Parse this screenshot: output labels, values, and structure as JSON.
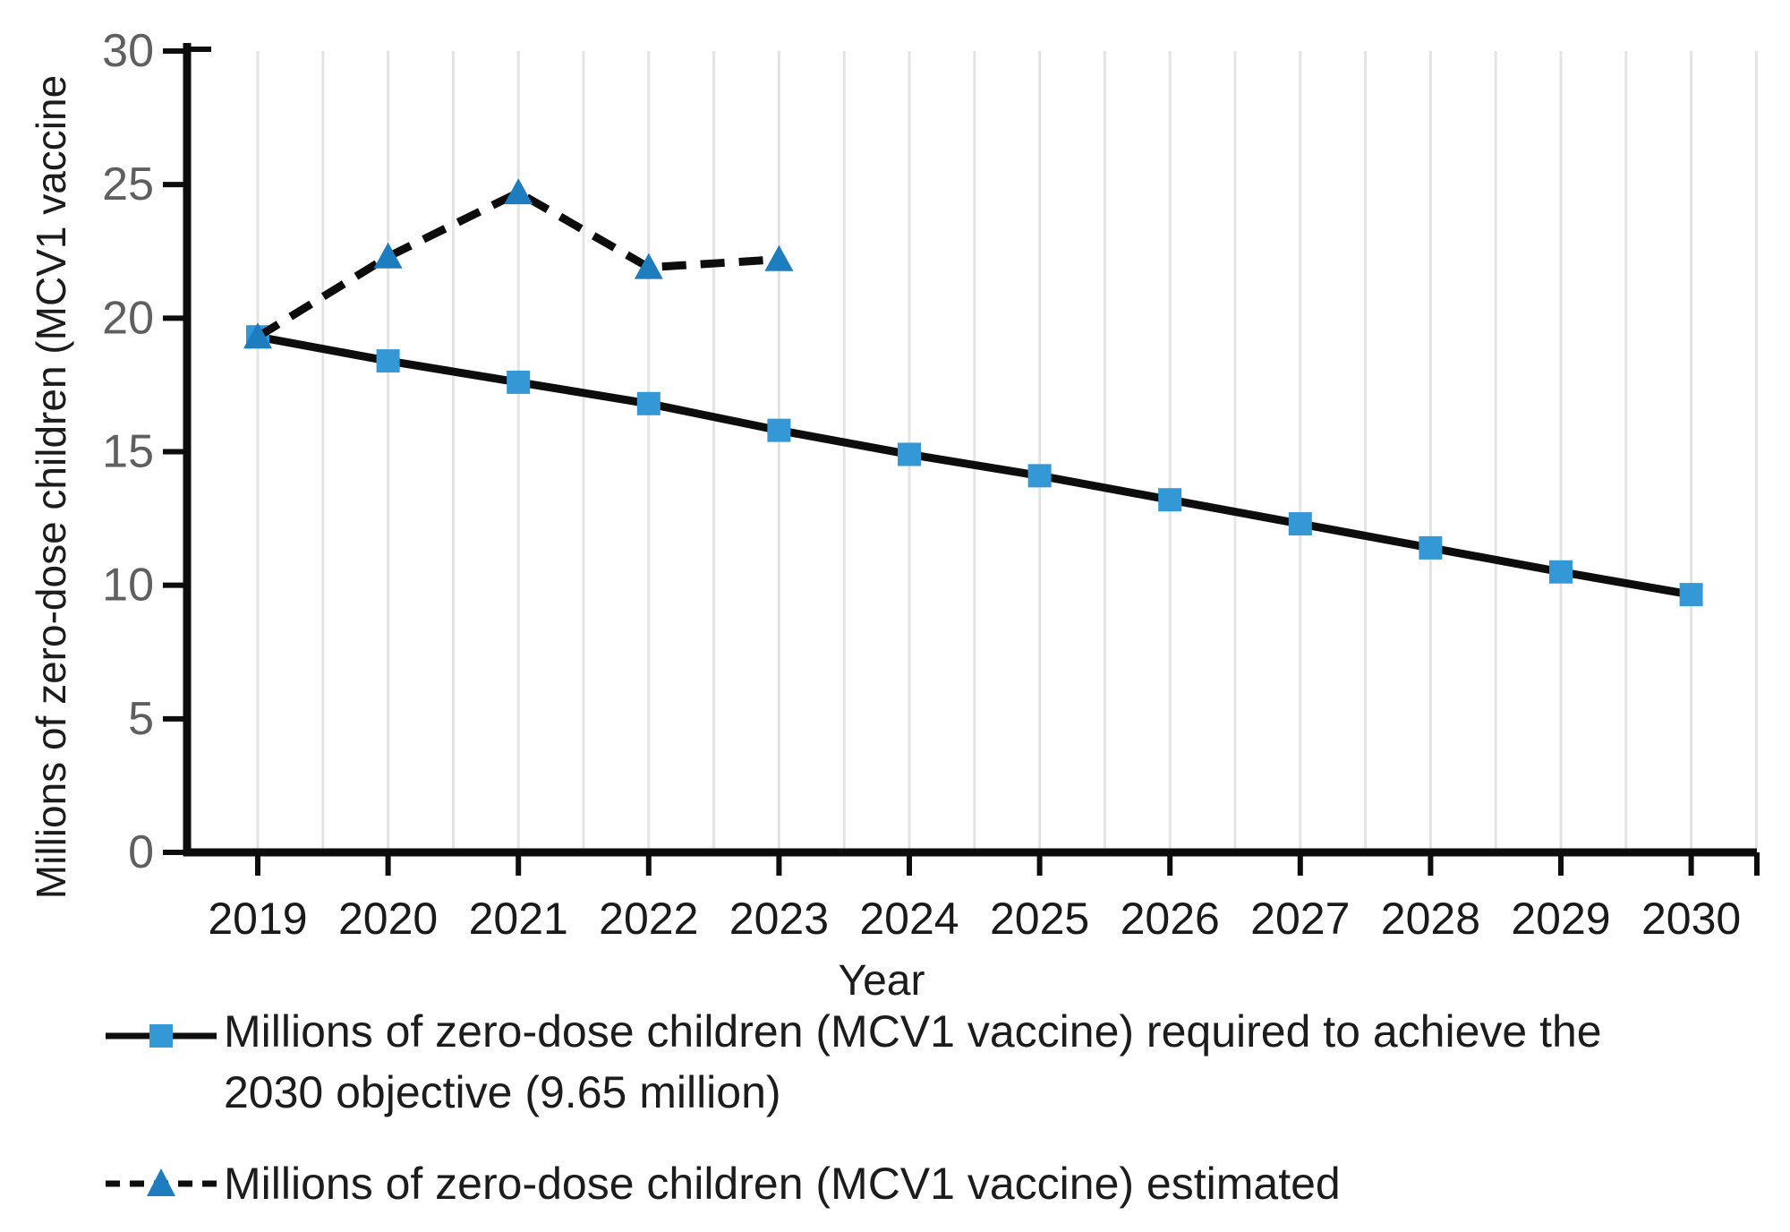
{
  "chart_data": {
    "type": "line",
    "categories": [
      2019,
      2020,
      2021,
      2022,
      2023,
      2024,
      2025,
      2026,
      2027,
      2028,
      2029,
      2030
    ],
    "xlabel": "Year",
    "ylabel": "Millions of zero-dose children (MCV1 vaccine",
    "ylim": [
      0,
      30
    ],
    "yticks": [
      0,
      5,
      10,
      15,
      20,
      25,
      30
    ],
    "grid": {
      "vertical": true,
      "interval_years": 0.5,
      "color": "#e4e4e4"
    },
    "legend_position": "bottom-left",
    "axis_color": "#0d0d0d",
    "x_tick_label_color": "#1a1a1a",
    "y_tick_label_color": "#5f5f5f",
    "series": [
      {
        "name": "required",
        "legend_lines": [
          "Millions of zero-dose children (MCV1 vaccine) required to achieve the",
          "2030 objective (9.65 million)"
        ],
        "marker": "square",
        "marker_color": "#3598d6",
        "line_color": "#0d0d0d",
        "line_style": "solid",
        "x": [
          2019,
          2020,
          2021,
          2022,
          2023,
          2024,
          2025,
          2026,
          2027,
          2028,
          2029,
          2030
        ],
        "values": [
          19.3,
          18.4,
          17.6,
          16.8,
          15.8,
          14.9,
          14.1,
          13.2,
          12.3,
          11.4,
          10.5,
          9.65
        ]
      },
      {
        "name": "estimated",
        "legend_lines": [
          "Millions of zero-dose children (MCV1 vaccine) estimated"
        ],
        "marker": "triangle",
        "marker_color": "#1e7dbf",
        "line_color": "#0d0d0d",
        "line_style": "dashed",
        "x": [
          2019,
          2020,
          2021,
          2022,
          2023
        ],
        "values": [
          19.3,
          22.3,
          24.7,
          21.9,
          22.2
        ]
      }
    ]
  }
}
